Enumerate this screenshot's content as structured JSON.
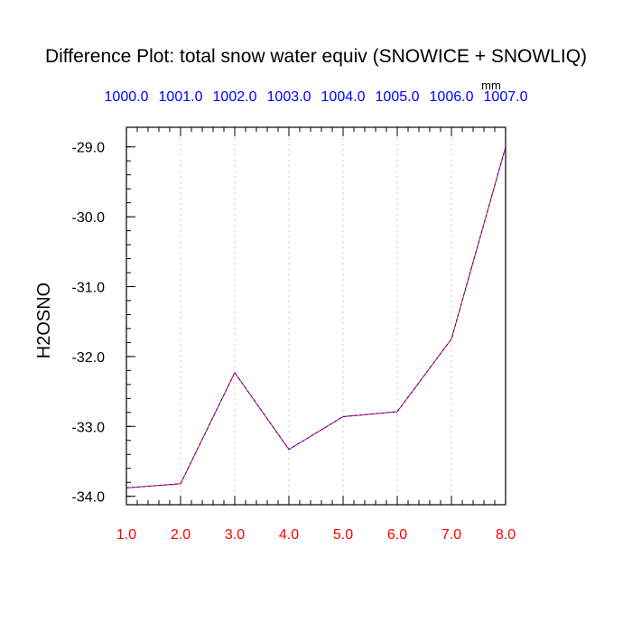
{
  "chart_data": {
    "type": "line",
    "title": "Difference Plot: total snow water equiv (SNOWICE + SNOWLIQ)",
    "ylabel": "H2OSNO",
    "top_axis_units": "mm",
    "x": [
      1.0,
      2.0,
      3.0,
      4.0,
      5.0,
      6.0,
      7.0,
      8.0
    ],
    "x_tick_labels": [
      "1.0",
      "2.0",
      "3.0",
      "4.0",
      "5.0",
      "6.0",
      "7.0",
      "8.0"
    ],
    "top_tick_labels": [
      "1000.0",
      "1001.0",
      "1002.0",
      "1003.0",
      "1004.0",
      "1005.0",
      "1006.0",
      "1007.0"
    ],
    "y_tick_values": [
      -29.0,
      -30.0,
      -31.0,
      -32.0,
      -33.0,
      -34.0
    ],
    "y_tick_labels": [
      "-29.0",
      "-30.0",
      "-31.0",
      "-32.0",
      "-33.0",
      "-34.0"
    ],
    "series": [
      {
        "values": [
          -33.88,
          -33.82,
          -32.23,
          -33.33,
          -32.86,
          -32.79,
          -31.75,
          -29.0
        ],
        "color": "#0000ff",
        "dash_color": "#ff0000",
        "style": "dashed"
      }
    ],
    "xlim": [
      1.0,
      8.0
    ],
    "ylim": [
      -34.12,
      -28.72
    ],
    "grid": "vertical-dotted",
    "axis_colors": {
      "bottom_ticks": "#ff0000",
      "top_ticks": "#0000ff",
      "left_ticks": "#000000"
    }
  }
}
